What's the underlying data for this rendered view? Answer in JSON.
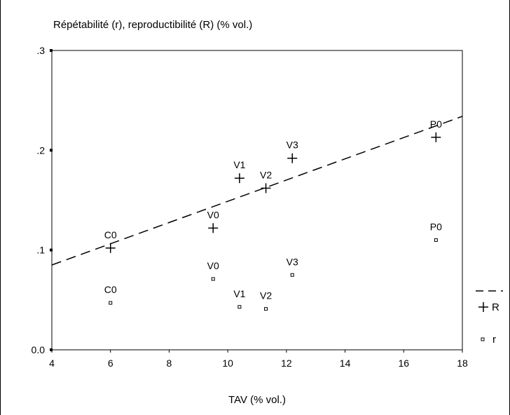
{
  "chart_data": {
    "type": "scatter",
    "title": "Répétabilité (r), reproductibilité (R) (% vol.)",
    "xlabel": "TAV (% vol.)",
    "ylabel": "",
    "xlim": [
      4,
      18
    ],
    "ylim": [
      0.0,
      0.3
    ],
    "x_ticks": [
      4,
      6,
      8,
      10,
      12,
      14,
      16,
      18
    ],
    "x_tick_labels": [
      "4",
      "6",
      "8",
      "10",
      "12",
      "14",
      "16",
      "18"
    ],
    "y_ticks": [
      0.0,
      0.1,
      0.2,
      0.3
    ],
    "y_tick_labels": [
      "0.0",
      ".1",
      ".2",
      ".3"
    ],
    "grid": false,
    "legend_position": "right",
    "series": [
      {
        "name": "R",
        "marker": "plus",
        "points": [
          {
            "label": "C0",
            "x": 6.0,
            "y": 0.102
          },
          {
            "label": "V0",
            "x": 9.5,
            "y": 0.122
          },
          {
            "label": "V1",
            "x": 10.4,
            "y": 0.172
          },
          {
            "label": "V2",
            "x": 11.3,
            "y": 0.162
          },
          {
            "label": "V3",
            "x": 12.2,
            "y": 0.192
          },
          {
            "label": "P0",
            "x": 17.1,
            "y": 0.213
          }
        ]
      },
      {
        "name": "r",
        "marker": "square",
        "points": [
          {
            "label": "C0",
            "x": 6.0,
            "y": 0.047
          },
          {
            "label": "V0",
            "x": 9.5,
            "y": 0.071
          },
          {
            "label": "V1",
            "x": 10.4,
            "y": 0.043
          },
          {
            "label": "V2",
            "x": 11.3,
            "y": 0.041
          },
          {
            "label": "V3",
            "x": 12.2,
            "y": 0.075
          },
          {
            "label": "P0",
            "x": 17.1,
            "y": 0.11
          }
        ]
      }
    ],
    "fit_line": {
      "style": "dashed",
      "from": {
        "x": 4,
        "y": 0.085
      },
      "to": {
        "x": 18,
        "y": 0.234
      }
    }
  }
}
